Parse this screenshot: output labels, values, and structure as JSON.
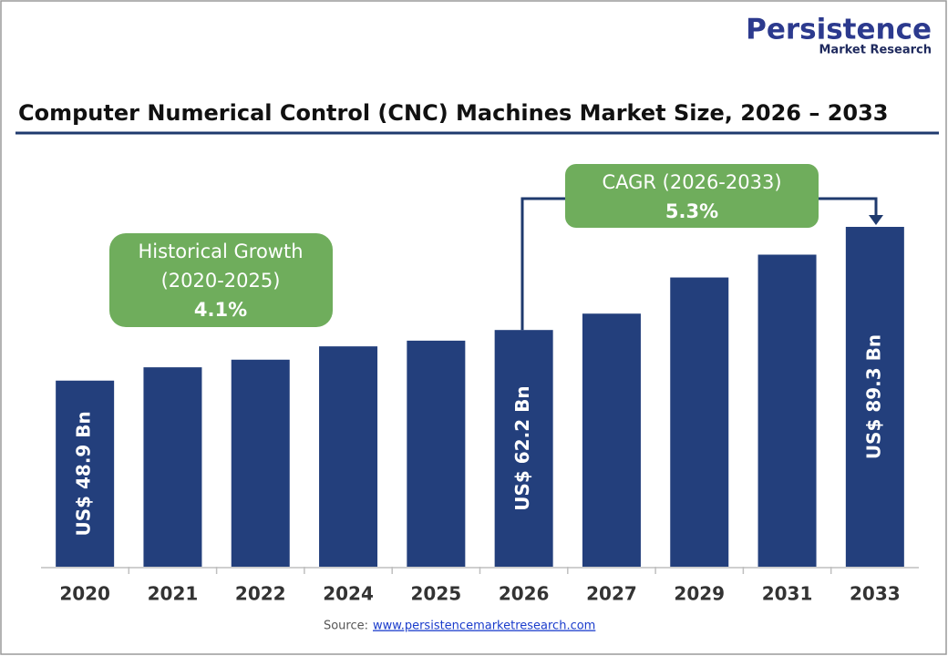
{
  "chart_data": {
    "type": "bar",
    "title": "Computer Numerical Control (CNC) Machines Market Size, 2026 – 2033",
    "logo": {
      "name": "Persistence",
      "tagline": "Market Research"
    },
    "categories": [
      "2020",
      "2021",
      "2022",
      "2024",
      "2025",
      "2026",
      "2027",
      "2029",
      "2031",
      "2033"
    ],
    "values": [
      48.9,
      52.4,
      54.4,
      57.9,
      59.4,
      62.2,
      66.5,
      76.0,
      82.0,
      89.3
    ],
    "value_labels": [
      "US$ 48.9 Bn",
      null,
      null,
      null,
      null,
      "US$ 62.2 Bn",
      null,
      null,
      null,
      "US$ 89.3 Bn"
    ],
    "color": "#233f7c",
    "annotations": [
      {
        "lines": [
          "Historical Growth",
          "(2020-2025)",
          "4.1%"
        ]
      },
      {
        "lines": [
          "CAGR (2026-2033)",
          "5.3%"
        ]
      }
    ],
    "source": {
      "label": "Source:",
      "link": "www.persistencemarketresearch.com"
    }
  }
}
